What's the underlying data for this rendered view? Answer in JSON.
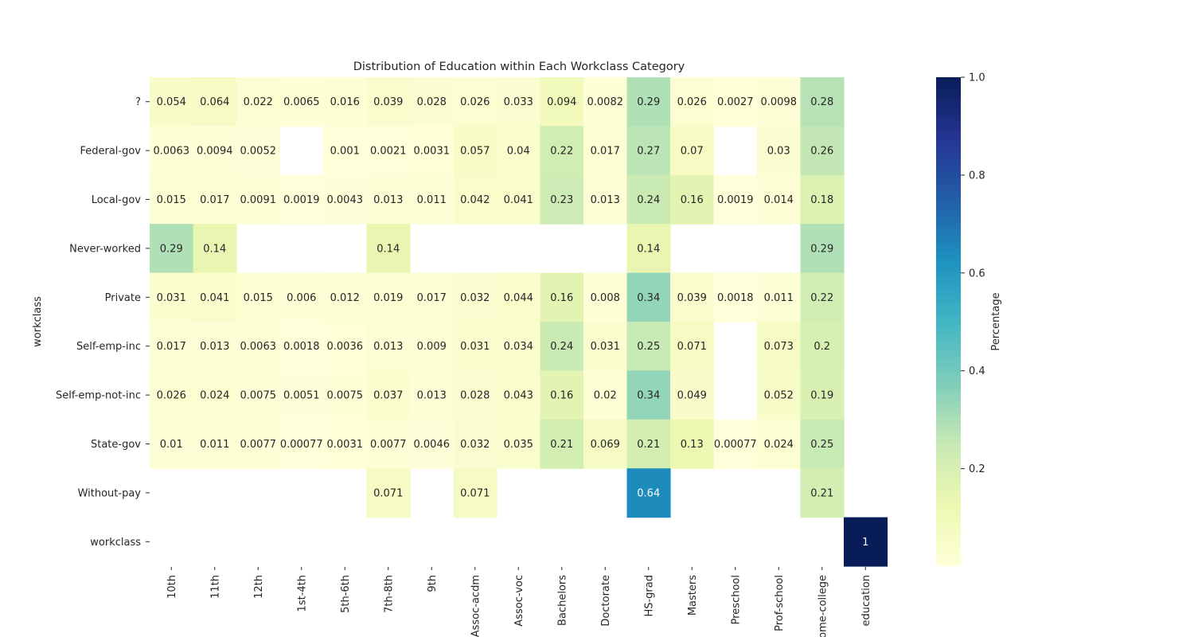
{
  "chart_data": {
    "type": "heatmap",
    "title": "Distribution of Education within Each Workclass Category",
    "xlabel": "",
    "ylabel": "workclass",
    "x_categories": [
      "10th",
      "11th",
      "12th",
      "1st-4th",
      "5th-6th",
      "7th-8th",
      "9th",
      "Assoc-acdm",
      "Assoc-voc",
      "Bachelors",
      "Doctorate",
      "HS-grad",
      "Masters",
      "Preschool",
      "Prof-school",
      "Some-college",
      "education"
    ],
    "y_categories": [
      "?",
      "Federal-gov",
      "Local-gov",
      "Never-worked",
      "Private",
      "Self-emp-inc",
      "Self-emp-not-inc",
      "State-gov",
      "Without-pay",
      "workclass"
    ],
    "values": [
      [
        0.054,
        0.064,
        0.022,
        0.0065,
        0.016,
        0.039,
        0.028,
        0.026,
        0.033,
        0.094,
        0.0082,
        0.29,
        0.026,
        0.0027,
        0.0098,
        0.28,
        null
      ],
      [
        0.0063,
        0.0094,
        0.0052,
        null,
        0.001,
        0.0021,
        0.0031,
        0.057,
        0.04,
        0.22,
        0.017,
        0.27,
        0.07,
        null,
        0.03,
        0.26,
        null
      ],
      [
        0.015,
        0.017,
        0.0091,
        0.0019,
        0.0043,
        0.013,
        0.011,
        0.042,
        0.041,
        0.23,
        0.013,
        0.24,
        0.16,
        0.0019,
        0.014,
        0.18,
        null
      ],
      [
        0.29,
        0.14,
        null,
        null,
        null,
        0.14,
        null,
        null,
        null,
        null,
        null,
        0.14,
        null,
        null,
        null,
        0.29,
        null
      ],
      [
        0.031,
        0.041,
        0.015,
        0.006,
        0.012,
        0.019,
        0.017,
        0.032,
        0.044,
        0.16,
        0.008,
        0.34,
        0.039,
        0.0018,
        0.011,
        0.22,
        null
      ],
      [
        0.017,
        0.013,
        0.0063,
        0.0018,
        0.0036,
        0.013,
        0.009,
        0.031,
        0.034,
        0.24,
        0.031,
        0.25,
        0.071,
        null,
        0.073,
        0.2,
        null
      ],
      [
        0.026,
        0.024,
        0.0075,
        0.0051,
        0.0075,
        0.037,
        0.013,
        0.028,
        0.043,
        0.16,
        0.02,
        0.34,
        0.049,
        null,
        0.052,
        0.19,
        null
      ],
      [
        0.01,
        0.011,
        0.0077,
        0.00077,
        0.0031,
        0.0077,
        0.0046,
        0.032,
        0.035,
        0.21,
        0.069,
        0.21,
        0.13,
        0.00077,
        0.024,
        0.25,
        null
      ],
      [
        null,
        null,
        null,
        null,
        null,
        0.071,
        null,
        0.071,
        null,
        null,
        null,
        0.64,
        null,
        null,
        null,
        0.21,
        null
      ],
      [
        null,
        null,
        null,
        null,
        null,
        null,
        null,
        null,
        null,
        null,
        null,
        null,
        null,
        null,
        null,
        null,
        1
      ]
    ],
    "colorbar": {
      "label": "Percentage",
      "range": [
        0,
        1
      ],
      "ticks": [
        "0.2",
        "0.4",
        "0.6",
        "0.8",
        "1.0"
      ],
      "colormap": "YlGnBu"
    },
    "annotations": "cell values shown",
    "missing_cells": "blank"
  }
}
